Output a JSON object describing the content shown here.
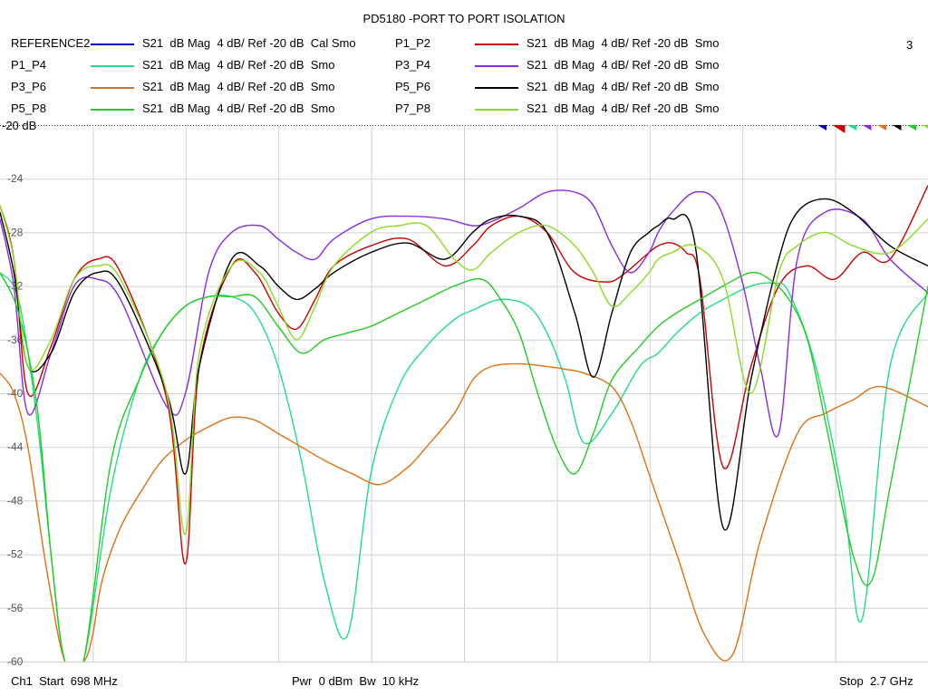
{
  "title": "PD5180 -PORT TO PORT ISOLATION",
  "channel_number": "3",
  "reference_label": "-20 dB",
  "legend": [
    {
      "name": "REFERENCE2",
      "format": "S21  dB Mag  4 dB/ Ref -20 dB  Cal Smo",
      "color": "#0000cc"
    },
    {
      "name": "P1_P2",
      "format": "S21  dB Mag  4 dB/ Ref -20 dB  Smo",
      "color": "#cc0000"
    },
    {
      "name": "P1_P4",
      "format": "S21  dB Mag  4 dB/ Ref -20 dB  Smo",
      "color": "#22dd88"
    },
    {
      "name": "P3_P4",
      "format": "S21  dB Mag  4 dB/ Ref -20 dB  Smo",
      "color": "#8a2be2"
    },
    {
      "name": "P3_P6",
      "format": "S21  dB Mag  4 dB/ Ref -20 dB  Smo",
      "color": "#e07010"
    },
    {
      "name": "P5_P6",
      "format": "S21  dB Mag  4 dB/ Ref -20 dB  Smo",
      "color": "#000000"
    },
    {
      "name": "P5_P8",
      "format": "S21  dB Mag  4 dB/ Ref -20 dB  Smo",
      "color": "#22cc22"
    },
    {
      "name": "P7_P8",
      "format": "S21  dB Mag  4 dB/ Ref -20 dB  Smo",
      "color": "#88dd22"
    }
  ],
  "footer": {
    "start": "Ch1  Start  698 MHz",
    "power": "Pwr  0 dBm  Bw  10 kHz",
    "stop": "Stop  2.7 GHz"
  },
  "chart_data": {
    "type": "line",
    "title": "PD5180 -PORT TO PORT ISOLATION",
    "x_unit": "MHz",
    "xlim": [
      698,
      2700
    ],
    "ylim": [
      -60,
      -20
    ],
    "yticks": [
      "-24",
      "-28",
      "-32",
      "-36",
      "-40",
      "-44",
      "-48",
      "-52",
      "-56",
      "-60"
    ],
    "ytick_values": [
      -24,
      -28,
      -32,
      -36,
      -40,
      -44,
      -48,
      -52,
      -56,
      -60
    ],
    "grid": true,
    "series": [
      {
        "name": "P1_P2",
        "color": "#cc0000",
        "x": [
          698,
          728,
          758,
          808,
          858,
          908,
          958,
          1058,
          1098,
          1128,
          1198,
          1248,
          1298,
          1338,
          1378,
          1418,
          1498,
          1578,
          1658,
          1718,
          1758,
          1818,
          1878,
          1938,
          2008,
          2048,
          2088,
          2118,
          2148,
          2178,
          2208,
          2258,
          2318,
          2378,
          2438,
          2498,
          2558,
          2618,
          2700
        ],
        "y": [
          -26,
          -30,
          -40,
          -36.5,
          -31.5,
          -30,
          -31,
          -40.5,
          -52.7,
          -38,
          -30.5,
          -31,
          -34,
          -35.2,
          -33,
          -30.5,
          -29,
          -28.5,
          -30.5,
          -29,
          -27.5,
          -26.8,
          -28,
          -31,
          -31.7,
          -31,
          -29.8,
          -29,
          -28.8,
          -29.5,
          -31.5,
          -45.5,
          -38,
          -32,
          -30.5,
          -31.5,
          -29.5,
          -30,
          -24.5
        ]
      },
      {
        "name": "P1_P4",
        "color": "#22dd88",
        "x": [
          698,
          738,
          778,
          808,
          838,
          878,
          938,
          998,
          1048,
          1098,
          1148,
          1198,
          1248,
          1298,
          1348,
          1398,
          1448,
          1498,
          1558,
          1618,
          1678,
          1718,
          1778,
          1838,
          1878,
          1918,
          1958,
          2018,
          2078,
          2118,
          2158,
          2208,
          2258,
          2318,
          2368,
          2400,
          2458,
          2518,
          2558,
          2618,
          2700
        ],
        "y": [
          -31,
          -33,
          -42,
          -52,
          -60,
          -60,
          -47,
          -39,
          -35.5,
          -33.5,
          -32.8,
          -32.8,
          -34,
          -38,
          -45,
          -54,
          -58,
          -46,
          -39.5,
          -36.5,
          -34.5,
          -33.8,
          -33,
          -33.5,
          -35.5,
          -39,
          -43.7,
          -41.5,
          -38,
          -37,
          -35.5,
          -34,
          -33,
          -32,
          -31.8,
          -32.5,
          -38,
          -48,
          -56.8,
          -38,
          -32.5
        ]
      },
      {
        "name": "P3_P4",
        "color": "#8a2be2",
        "x": [
          698,
          728,
          758,
          808,
          858,
          908,
          958,
          1058,
          1098,
          1148,
          1198,
          1258,
          1298,
          1338,
          1378,
          1418,
          1498,
          1578,
          1658,
          1718,
          1758,
          1818,
          1878,
          1938,
          1978,
          2018,
          2058,
          2098,
          2118,
          2148,
          2198,
          2248,
          2298,
          2338,
          2378,
          2418,
          2478,
          2558,
          2618,
          2700
        ],
        "y": [
          -27,
          -32,
          -41.5,
          -37,
          -32,
          -31.5,
          -33,
          -41,
          -40,
          -31,
          -28,
          -27.5,
          -28.5,
          -29.5,
          -30,
          -28.5,
          -27,
          -26.8,
          -27,
          -27.5,
          -27.2,
          -26.2,
          -25,
          -25,
          -26,
          -29,
          -31,
          -29.5,
          -28,
          -26.5,
          -25,
          -26,
          -31.5,
          -38,
          -43,
          -30,
          -26.5,
          -27,
          -30,
          -32.5
        ]
      },
      {
        "name": "P3_P6",
        "color": "#e07010",
        "x": [
          698,
          728,
          758,
          798,
          838,
          878,
          898,
          918,
          958,
          1008,
          1048,
          1098,
          1148,
          1198,
          1248,
          1298,
          1348,
          1398,
          1458,
          1518,
          1578,
          1618,
          1678,
          1718,
          1758,
          1818,
          1878,
          1918,
          1958,
          2018,
          2058,
          2098,
          2158,
          2218,
          2278,
          2338,
          2418,
          2478,
          2538,
          2598,
          2700
        ],
        "y": [
          -38.5,
          -40,
          -44,
          -53,
          -60,
          -60,
          -58,
          -54,
          -50,
          -47,
          -45,
          -43.5,
          -42.5,
          -41.8,
          -42,
          -43,
          -44,
          -45,
          -46,
          -46.8,
          -45.5,
          -44,
          -41.5,
          -39,
          -38,
          -37.8,
          -38,
          -38.2,
          -38.5,
          -39.5,
          -42,
          -46,
          -52,
          -58,
          -59.5,
          -51,
          -43,
          -41.5,
          -40.5,
          -39.5,
          -41
        ]
      },
      {
        "name": "P5_P6",
        "color": "#000000",
        "x": [
          698,
          728,
          758,
          808,
          858,
          908,
          958,
          1058,
          1098,
          1128,
          1198,
          1258,
          1298,
          1338,
          1378,
          1418,
          1498,
          1578,
          1658,
          1718,
          1758,
          1818,
          1878,
          1938,
          1978,
          2018,
          2058,
          2098,
          2118,
          2148,
          2198,
          2258,
          2318,
          2378,
          2418,
          2478,
          2538,
          2618,
          2700
        ],
        "y": [
          -26.5,
          -31,
          -38,
          -37,
          -32.5,
          -31,
          -32,
          -40,
          -46,
          -38,
          -30,
          -30.5,
          -32,
          -33,
          -32.2,
          -31,
          -29.5,
          -28.8,
          -30,
          -28,
          -27,
          -26.8,
          -28,
          -34,
          -38.8,
          -34,
          -29.5,
          -28,
          -27.5,
          -27,
          -29,
          -50,
          -39,
          -30,
          -26.5,
          -25.5,
          -26.5,
          -29,
          -30.5
        ]
      },
      {
        "name": "P5_P8",
        "color": "#22cc22",
        "x": [
          698,
          738,
          778,
          808,
          838,
          878,
          938,
          998,
          1048,
          1098,
          1148,
          1198,
          1248,
          1298,
          1348,
          1398,
          1448,
          1498,
          1558,
          1618,
          1678,
          1738,
          1778,
          1818,
          1858,
          1898,
          1938,
          1978,
          2018,
          2078,
          2118,
          2158,
          2208,
          2258,
          2318,
          2358,
          2400,
          2440,
          2478,
          2538,
          2578,
          2618,
          2700
        ],
        "y": [
          -31,
          -34,
          -41,
          -52,
          -60,
          -60,
          -45,
          -39,
          -35.5,
          -33.5,
          -32.8,
          -32.8,
          -32.8,
          -35,
          -37,
          -36,
          -35.5,
          -35,
          -34,
          -33,
          -32,
          -31.5,
          -33,
          -35.5,
          -40,
          -44,
          -46,
          -43,
          -39,
          -36.5,
          -35,
          -34,
          -33,
          -32,
          -31,
          -31.5,
          -33,
          -36,
          -42,
          -52,
          -54,
          -47,
          -32
        ]
      },
      {
        "name": "P7_P8",
        "color": "#88dd22",
        "x": [
          698,
          728,
          758,
          808,
          858,
          908,
          958,
          1058,
          1098,
          1128,
          1198,
          1258,
          1298,
          1338,
          1378,
          1418,
          1498,
          1558,
          1618,
          1678,
          1718,
          1758,
          1818,
          1878,
          1938,
          1978,
          2018,
          2058,
          2098,
          2118,
          2148,
          2198,
          2258,
          2318,
          2378,
          2418,
          2478,
          2538,
          2618,
          2700
        ],
        "y": [
          -26,
          -30,
          -38,
          -36,
          -31.5,
          -30.5,
          -31.5,
          -40,
          -50.5,
          -37,
          -30.5,
          -31,
          -33.5,
          -36,
          -33.5,
          -30.5,
          -28,
          -27.5,
          -27.5,
          -30,
          -30.8,
          -29.5,
          -28,
          -27.5,
          -29,
          -31,
          -33.5,
          -32.5,
          -31,
          -30,
          -29.5,
          -29,
          -31.5,
          -40,
          -31,
          -29,
          -28,
          -29,
          -29.5,
          -27
        ]
      }
    ],
    "markers": [
      {
        "color": "#0000cc"
      },
      {
        "color": "#cc0000"
      },
      {
        "color": "#22dd88"
      },
      {
        "color": "#8a2be2"
      },
      {
        "color": "#e07010"
      },
      {
        "color": "#000000"
      },
      {
        "color": "#22cc22"
      },
      {
        "color": "#88dd22"
      }
    ]
  }
}
